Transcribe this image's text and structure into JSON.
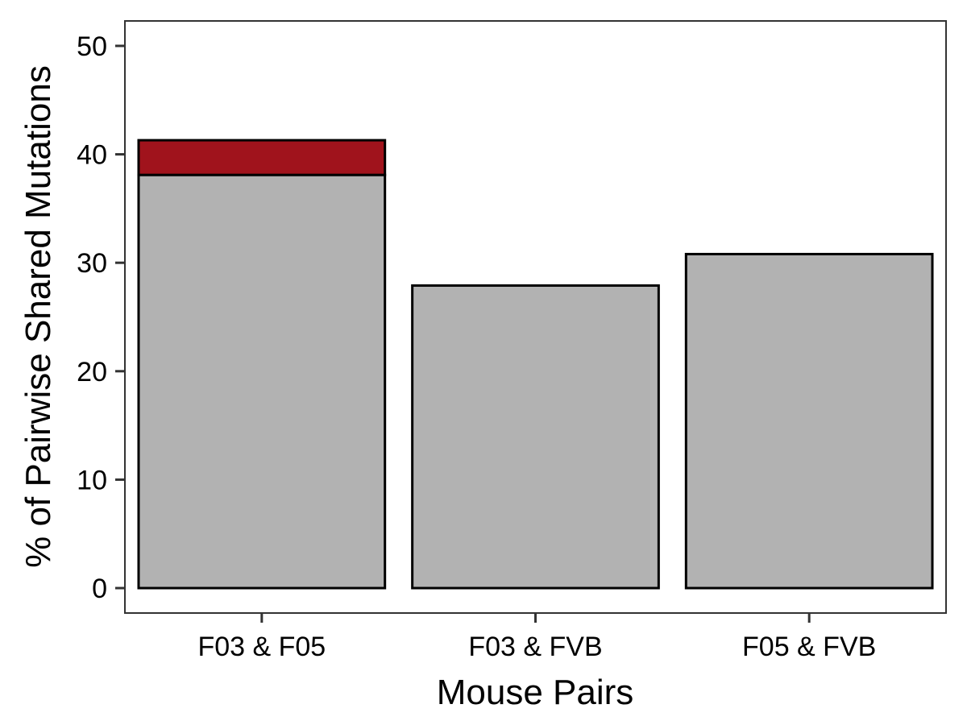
{
  "chart_data": {
    "type": "bar",
    "stacked": true,
    "title": "",
    "xlabel": "Mouse Pairs",
    "ylabel": "% of Pairwise Shared Mutations",
    "categories": [
      "F03 & F05",
      "F03 & FVB",
      "F05 & FVB"
    ],
    "series": [
      {
        "values": [
          38.1,
          27.9,
          30.8
        ],
        "color": "#b2b2b2"
      },
      {
        "values": [
          3.2,
          0,
          0
        ],
        "color": "#a0131c"
      }
    ],
    "ylim": [
      -2.3,
      52.3
    ],
    "yticks": [
      0,
      10,
      20,
      30,
      40,
      50
    ],
    "grid": false,
    "legend": "none"
  }
}
